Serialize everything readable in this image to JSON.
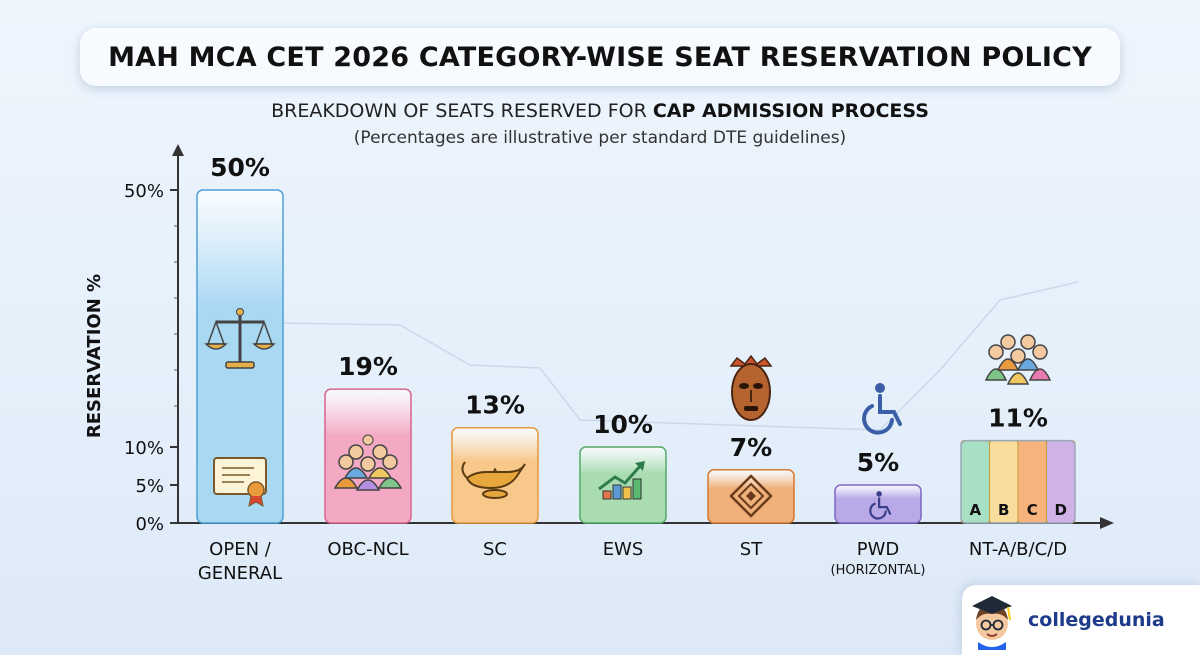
{
  "header": {
    "title": "MAH MCA CET 2026 CATEGORY-WISE SEAT RESERVATION POLICY",
    "subtitle_prefix": "BREAKDOWN OF SEATS RESERVED FOR ",
    "subtitle_bold": "CAP ADMISSION PROCESS",
    "note": "(Percentages are illustrative per standard DTE guidelines)"
  },
  "chart_data": {
    "type": "bar",
    "title": "MAH MCA CET 2026 CATEGORY-WISE SEAT RESERVATION POLICY",
    "subtitle": "BREAKDOWN OF SEATS RESERVED FOR CAP ADMISSION PROCESS",
    "ylabel": "RESERVATION %",
    "xlabel": "",
    "yticks": [
      "50%",
      "10%",
      "5%",
      "0%"
    ],
    "ytick_values": [
      50,
      10,
      5,
      0
    ],
    "ylim": [
      0,
      50
    ],
    "grid": false,
    "categories": [
      "OPEN / GENERAL",
      "OBC-NCL",
      "SC",
      "EWS",
      "ST",
      "PWD",
      "NT-A/B/C/D"
    ],
    "category_lines": [
      [
        "OPEN /",
        "GENERAL"
      ],
      [
        "OBC-NCL"
      ],
      [
        "SC"
      ],
      [
        "EWS"
      ],
      [
        "ST"
      ],
      [
        "PWD"
      ],
      [
        "NT-A/B/C/D"
      ]
    ],
    "category_sublabels": [
      "",
      "",
      "",
      "",
      "",
      "(HORIZONTAL)",
      ""
    ],
    "values": [
      50,
      19,
      13,
      10,
      7,
      5,
      11
    ],
    "value_labels": [
      "50%",
      "19%",
      "13%",
      "10%",
      "7%",
      "5%",
      "11%"
    ],
    "bar_colors": [
      "#a9d8f3",
      "#f3a9c4",
      "#f7c88a",
      "#a9dcb0",
      "#f0b07a",
      "#b9a9e6",
      "#f6d29a"
    ],
    "bar_borders": [
      "#4f9fd6",
      "#d8648f",
      "#e49a40",
      "#55a865",
      "#d37930",
      "#7e67c9",
      "#c99a3f"
    ],
    "segments": [
      "A",
      "B",
      "C",
      "D"
    ],
    "segment_colors": [
      "#a8e0c6",
      "#f7dc9c",
      "#f6b47c",
      "#cfb3e6"
    ],
    "icons": [
      "scales-icon",
      "certificate-icon",
      "group-icon",
      "lamp-icon",
      "growth-chart-icon",
      "tribal-mask-icon",
      "tribal-pattern-icon",
      "wheelchair-icon",
      "wheelchair-small-icon",
      "family-icon"
    ]
  },
  "branding": {
    "logo_text": "collegedunia",
    "logo_icon": "student-mascot-icon"
  }
}
